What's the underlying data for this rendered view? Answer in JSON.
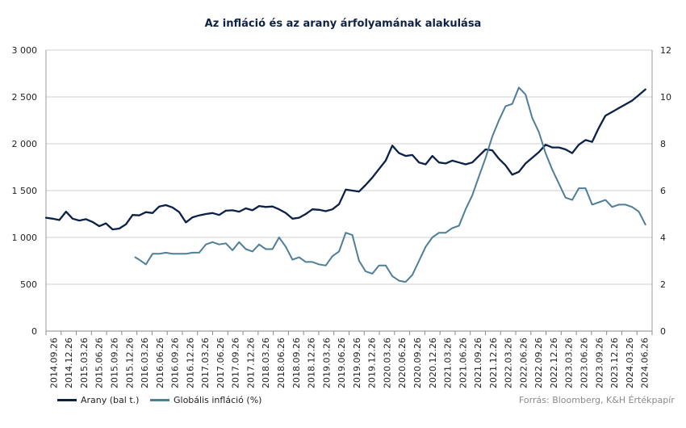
{
  "chart_data": {
    "type": "line",
    "title": "Az infláció és az arany árfolyamának alakulása",
    "source": "Forrás: Bloomberg, K&H Értékpapír",
    "y_left": {
      "ticks": [
        "0",
        "500",
        "1 000",
        "1 500",
        "2 000",
        "2 500",
        "3 000"
      ],
      "range": [
        0,
        3000
      ]
    },
    "y_right": {
      "ticks": [
        "0",
        "2",
        "4",
        "6",
        "8",
        "10",
        "12"
      ],
      "range": [
        0,
        12
      ]
    },
    "x_ticks": [
      "2014.09.26",
      "2014.12.26",
      "2015.03.26",
      "2015.06.26",
      "2015.09.26",
      "2015.12.26",
      "2016.03.26",
      "2016.06.26",
      "2016.09.26",
      "2016.12.26",
      "2017.03.26",
      "2017.06.26",
      "2017.09.26",
      "2017.12.26",
      "2018.03.26",
      "2018.06.26",
      "2018.09.26",
      "2018.12.26",
      "2019.03.26",
      "2019.06.26",
      "2019.09.26",
      "2019.12.26",
      "2020.03.26",
      "2020.06.26",
      "2020.09.26",
      "2020.12.26",
      "2021.03.26",
      "2021.06.26",
      "2021.09.26",
      "2021.12.26",
      "2022.03.26",
      "2022.06.26",
      "2022.09.26",
      "2022.12.26",
      "2023.03.26",
      "2023.06.26",
      "2023.09.26",
      "2023.12.26",
      "2024.03.26",
      "2024.06.26"
    ],
    "grid": true,
    "legend_placement": "bottom-left",
    "series": [
      {
        "name": "Arany (bal t.)",
        "axis": "left",
        "color": "#0b2148",
        "points": [
          [
            0,
            1210
          ],
          [
            1,
            1200
          ],
          [
            2,
            1185
          ],
          [
            3,
            1275
          ],
          [
            4,
            1200
          ],
          [
            5,
            1180
          ],
          [
            6,
            1195
          ],
          [
            7,
            1165
          ],
          [
            8,
            1120
          ],
          [
            9,
            1150
          ],
          [
            10,
            1085
          ],
          [
            11,
            1095
          ],
          [
            12,
            1140
          ],
          [
            13,
            1240
          ],
          [
            14,
            1235
          ],
          [
            15,
            1270
          ],
          [
            16,
            1260
          ],
          [
            17,
            1330
          ],
          [
            18,
            1345
          ],
          [
            19,
            1320
          ],
          [
            20,
            1270
          ],
          [
            21,
            1160
          ],
          [
            22,
            1215
          ],
          [
            23,
            1235
          ],
          [
            24,
            1250
          ],
          [
            25,
            1260
          ],
          [
            26,
            1240
          ],
          [
            27,
            1285
          ],
          [
            28,
            1290
          ],
          [
            29,
            1275
          ],
          [
            30,
            1310
          ],
          [
            31,
            1290
          ],
          [
            32,
            1335
          ],
          [
            33,
            1325
          ],
          [
            34,
            1330
          ],
          [
            35,
            1300
          ],
          [
            36,
            1260
          ],
          [
            37,
            1200
          ],
          [
            38,
            1210
          ],
          [
            39,
            1250
          ],
          [
            40,
            1300
          ],
          [
            41,
            1295
          ],
          [
            42,
            1280
          ],
          [
            43,
            1300
          ],
          [
            44,
            1355
          ],
          [
            45,
            1510
          ],
          [
            46,
            1500
          ],
          [
            47,
            1490
          ],
          [
            48,
            1560
          ],
          [
            49,
            1640
          ],
          [
            50,
            1730
          ],
          [
            51,
            1820
          ],
          [
            52,
            1980
          ],
          [
            53,
            1900
          ],
          [
            54,
            1870
          ],
          [
            55,
            1880
          ],
          [
            56,
            1800
          ],
          [
            57,
            1780
          ],
          [
            58,
            1870
          ],
          [
            59,
            1800
          ],
          [
            60,
            1790
          ],
          [
            61,
            1820
          ],
          [
            62,
            1800
          ],
          [
            63,
            1780
          ],
          [
            64,
            1800
          ],
          [
            65,
            1870
          ],
          [
            66,
            1940
          ],
          [
            67,
            1930
          ],
          [
            68,
            1840
          ],
          [
            69,
            1770
          ],
          [
            70,
            1670
          ],
          [
            71,
            1700
          ],
          [
            72,
            1790
          ],
          [
            73,
            1850
          ],
          [
            74,
            1910
          ],
          [
            75,
            1990
          ],
          [
            76,
            1960
          ],
          [
            77,
            1960
          ],
          [
            78,
            1940
          ],
          [
            79,
            1900
          ],
          [
            80,
            1990
          ],
          [
            81,
            2040
          ],
          [
            82,
            2020
          ],
          [
            83,
            2170
          ],
          [
            84,
            2300
          ],
          [
            85,
            2340
          ],
          [
            86,
            2380
          ],
          [
            87,
            2420
          ],
          [
            88,
            2460
          ],
          [
            89,
            2520
          ],
          [
            90,
            2580
          ]
        ]
      },
      {
        "name": "Globális infláció (%)",
        "axis": "right",
        "color": "#4e7e98",
        "points": [
          [
            13.4,
            3.15
          ],
          [
            14,
            3.05
          ],
          [
            15,
            2.85
          ],
          [
            16,
            3.3
          ],
          [
            17,
            3.3
          ],
          [
            18,
            3.35
          ],
          [
            19,
            3.3
          ],
          [
            20,
            3.3
          ],
          [
            21,
            3.3
          ],
          [
            22,
            3.35
          ],
          [
            23,
            3.35
          ],
          [
            24,
            3.7
          ],
          [
            25,
            3.8
          ],
          [
            26,
            3.7
          ],
          [
            27,
            3.75
          ],
          [
            28,
            3.45
          ],
          [
            29,
            3.8
          ],
          [
            30,
            3.5
          ],
          [
            31,
            3.4
          ],
          [
            32,
            3.7
          ],
          [
            33,
            3.5
          ],
          [
            34,
            3.5
          ],
          [
            35,
            4.0
          ],
          [
            36,
            3.6
          ],
          [
            37,
            3.05
          ],
          [
            38,
            3.15
          ],
          [
            39,
            2.95
          ],
          [
            40,
            2.95
          ],
          [
            41,
            2.85
          ],
          [
            42,
            2.8
          ],
          [
            43,
            3.2
          ],
          [
            44,
            3.4
          ],
          [
            45,
            4.2
          ],
          [
            46,
            4.1
          ],
          [
            47,
            3.0
          ],
          [
            48,
            2.55
          ],
          [
            49,
            2.45
          ],
          [
            50,
            2.8
          ],
          [
            51,
            2.8
          ],
          [
            52,
            2.35
          ],
          [
            53,
            2.15
          ],
          [
            54,
            2.1
          ],
          [
            55,
            2.4
          ],
          [
            56,
            3.0
          ],
          [
            57,
            3.6
          ],
          [
            58,
            4.0
          ],
          [
            59,
            4.2
          ],
          [
            60,
            4.2
          ],
          [
            61,
            4.4
          ],
          [
            62,
            4.5
          ],
          [
            63,
            5.2
          ],
          [
            64,
            5.8
          ],
          [
            65,
            6.6
          ],
          [
            66,
            7.4
          ],
          [
            67,
            8.3
          ],
          [
            68,
            9.0
          ],
          [
            69,
            9.6
          ],
          [
            70,
            9.7
          ],
          [
            71,
            10.4
          ],
          [
            72,
            10.1
          ],
          [
            73,
            9.1
          ],
          [
            74,
            8.5
          ],
          [
            75,
            7.6
          ],
          [
            76,
            6.9
          ],
          [
            77,
            6.3
          ],
          [
            78,
            5.7
          ],
          [
            79,
            5.6
          ],
          [
            80,
            6.1
          ],
          [
            81,
            6.1
          ],
          [
            82,
            5.4
          ],
          [
            83,
            5.5
          ],
          [
            84,
            5.6
          ],
          [
            85,
            5.3
          ],
          [
            86,
            5.4
          ],
          [
            87,
            5.4
          ],
          [
            88,
            5.3
          ],
          [
            89,
            5.1
          ],
          [
            90,
            4.55
          ]
        ]
      }
    ]
  }
}
